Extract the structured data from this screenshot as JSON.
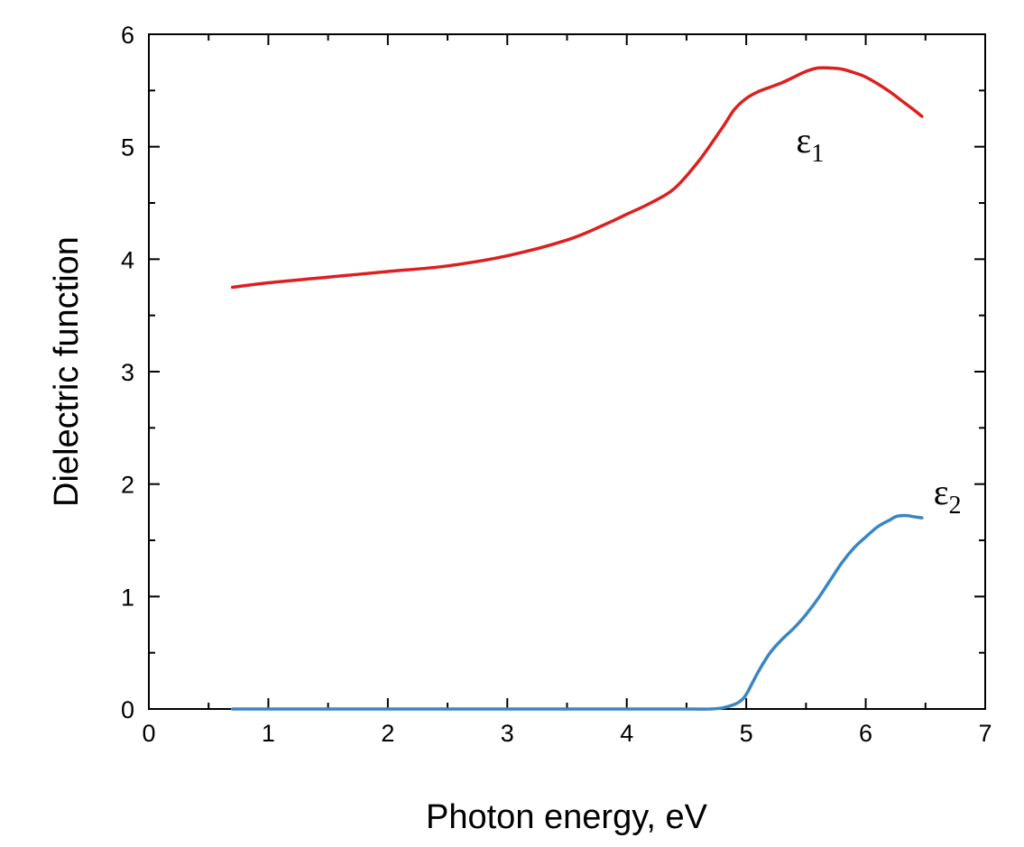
{
  "chart_data": {
    "type": "line",
    "title": "",
    "xlabel": "Photon energy, eV",
    "ylabel": "Dielectric function",
    "xlim": [
      0,
      7
    ],
    "ylim": [
      0,
      6
    ],
    "xticks": [
      "0",
      "1",
      "2",
      "3",
      "4",
      "5",
      "6",
      "7"
    ],
    "yticks": [
      "0",
      "1",
      "2",
      "3",
      "4",
      "5",
      "6"
    ],
    "grid": false,
    "legend": "none",
    "series": [
      {
        "name": "ε1",
        "label_main": "ε",
        "label_sub": "1",
        "color": "#dd1f1f",
        "x": [
          0.7,
          1.0,
          1.5,
          2.0,
          2.5,
          3.0,
          3.5,
          3.8,
          4.0,
          4.2,
          4.4,
          4.6,
          4.8,
          4.9,
          5.0,
          5.1,
          5.2,
          5.3,
          5.4,
          5.5,
          5.6,
          5.7,
          5.8,
          5.9,
          6.0,
          6.1,
          6.2,
          6.3,
          6.4,
          6.47
        ],
        "y": [
          3.75,
          3.79,
          3.84,
          3.89,
          3.94,
          4.03,
          4.17,
          4.3,
          4.4,
          4.5,
          4.63,
          4.87,
          5.17,
          5.33,
          5.43,
          5.49,
          5.53,
          5.57,
          5.62,
          5.67,
          5.7,
          5.7,
          5.69,
          5.66,
          5.62,
          5.56,
          5.49,
          5.41,
          5.33,
          5.27
        ]
      },
      {
        "name": "ε2",
        "label_main": "ε",
        "label_sub": "2",
        "color": "#3a86c4",
        "x": [
          0.7,
          1.5,
          2.5,
          3.5,
          4.5,
          4.7,
          4.8,
          4.9,
          4.95,
          5.0,
          5.1,
          5.2,
          5.3,
          5.4,
          5.5,
          5.6,
          5.7,
          5.8,
          5.9,
          6.0,
          6.1,
          6.2,
          6.25,
          6.3,
          6.35,
          6.4,
          6.47
        ],
        "y": [
          0.0,
          0.0,
          0.0,
          0.0,
          0.0,
          0.0,
          0.01,
          0.04,
          0.07,
          0.13,
          0.33,
          0.5,
          0.62,
          0.72,
          0.84,
          0.98,
          1.14,
          1.3,
          1.43,
          1.53,
          1.62,
          1.68,
          1.71,
          1.72,
          1.72,
          1.71,
          1.7
        ]
      }
    ],
    "annotations": [
      {
        "series": 0,
        "x": 5.65,
        "y": 4.95
      },
      {
        "series": 1,
        "x": 6.8,
        "y": 1.82
      }
    ]
  }
}
